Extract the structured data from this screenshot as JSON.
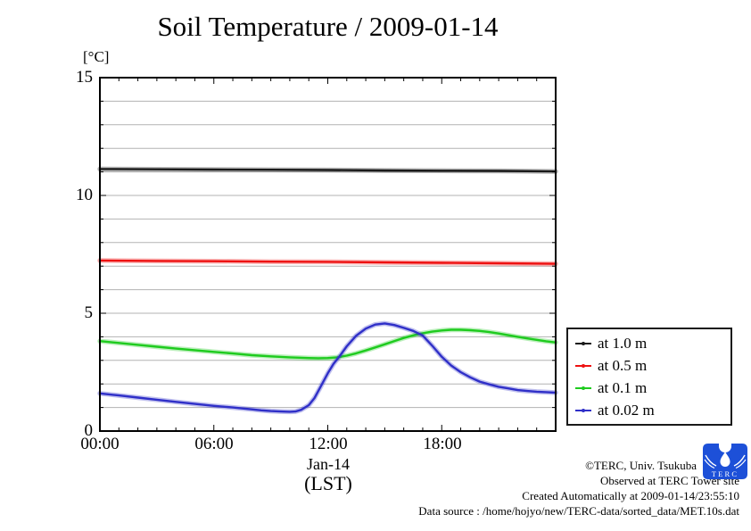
{
  "title": "Soil Temperature / 2009-01-14",
  "y_axis": {
    "unit": "[°C]",
    "labels": [
      "15",
      "10",
      "5",
      "0"
    ]
  },
  "x_axis": {
    "labels": [
      "00:00",
      "06:00",
      "12:00",
      "18:00"
    ],
    "date_label": "Jan-14",
    "timezone_label": "(LST)"
  },
  "footer": {
    "copyright": "©TERC, Univ. Tsukuba",
    "observed": "Observed at TERC Tower site",
    "created": "Created Automatically at 2009-01-14/23:55:10",
    "source": "Data source : /home/hojyo/new/TERC-data/sorted_data/MET.10s.dat",
    "logo_text": "TERC"
  },
  "colors": {
    "grid": "#b3b3b3",
    "axis": "#000000",
    "logo_blue": "#1d50d8"
  },
  "chart_data": {
    "type": "line",
    "title": "Soil Temperature / 2009-01-14",
    "xlabel": "Jan-14 (LST)",
    "ylabel": "[°C]",
    "xlim": [
      0,
      24
    ],
    "ylim": [
      0,
      15
    ],
    "x_unit": "hours of day",
    "grid": "horizontal gridlines every 1 °C",
    "legend_position": "outside lower right",
    "xticks_major": [
      0,
      6,
      12,
      18,
      24
    ],
    "xtick_minor_interval": 1,
    "xtick_labels": [
      "00:00",
      "06:00",
      "12:00",
      "18:00"
    ],
    "yticks_major": [
      0,
      5,
      10,
      15
    ],
    "ytick_minor_interval": 1,
    "series": [
      {
        "name": "at 1.0 m",
        "color": "#1a1a1a",
        "x": [
          0,
          3,
          6,
          9,
          12,
          15,
          18,
          21,
          24
        ],
        "values": [
          11.12,
          11.11,
          11.1,
          11.09,
          11.08,
          11.06,
          11.05,
          11.04,
          11.02
        ]
      },
      {
        "name": "at 0.5 m",
        "color": "#ee1111",
        "x": [
          0,
          3,
          6,
          9,
          12,
          15,
          18,
          21,
          24
        ],
        "values": [
          7.24,
          7.22,
          7.21,
          7.19,
          7.18,
          7.16,
          7.14,
          7.12,
          7.1
        ]
      },
      {
        "name": "at 0.1 m",
        "color": "#1ecb1e",
        "x": [
          0,
          1,
          2,
          3,
          4,
          5,
          6,
          7,
          8,
          9,
          10,
          11,
          11.5,
          12,
          12.5,
          13,
          13.5,
          14,
          14.5,
          15,
          15.5,
          16,
          16.5,
          17,
          17.5,
          18,
          18.5,
          19,
          19.5,
          20,
          20.5,
          21,
          21.5,
          22,
          22.5,
          23,
          23.5,
          24
        ],
        "values": [
          3.82,
          3.74,
          3.66,
          3.58,
          3.5,
          3.43,
          3.36,
          3.29,
          3.22,
          3.17,
          3.13,
          3.1,
          3.09,
          3.1,
          3.13,
          3.2,
          3.3,
          3.42,
          3.55,
          3.68,
          3.82,
          3.95,
          4.06,
          4.15,
          4.22,
          4.27,
          4.3,
          4.3,
          4.28,
          4.25,
          4.2,
          4.14,
          4.07,
          4.0,
          3.93,
          3.87,
          3.81,
          3.76
        ]
      },
      {
        "name": "at 0.02 m",
        "color": "#2f2fc8",
        "x": [
          0,
          1,
          2,
          3,
          4,
          5,
          6,
          7,
          8,
          8.5,
          9,
          9.5,
          10,
          10.3,
          10.6,
          11,
          11.3,
          11.6,
          12,
          12.3,
          12.6,
          13,
          13.5,
          14,
          14.5,
          15,
          15.5,
          16,
          16.5,
          17,
          17.5,
          18,
          18.5,
          19,
          19.5,
          20,
          20.5,
          21,
          21.5,
          22,
          22.5,
          23,
          23.5,
          24
        ],
        "values": [
          1.6,
          1.51,
          1.42,
          1.33,
          1.24,
          1.15,
          1.07,
          1.0,
          0.92,
          0.88,
          0.85,
          0.83,
          0.82,
          0.83,
          0.9,
          1.1,
          1.4,
          1.85,
          2.45,
          2.85,
          3.15,
          3.6,
          4.05,
          4.35,
          4.52,
          4.57,
          4.5,
          4.38,
          4.25,
          4.05,
          3.62,
          3.15,
          2.78,
          2.5,
          2.28,
          2.1,
          1.98,
          1.88,
          1.81,
          1.74,
          1.7,
          1.67,
          1.65,
          1.63
        ]
      }
    ]
  }
}
